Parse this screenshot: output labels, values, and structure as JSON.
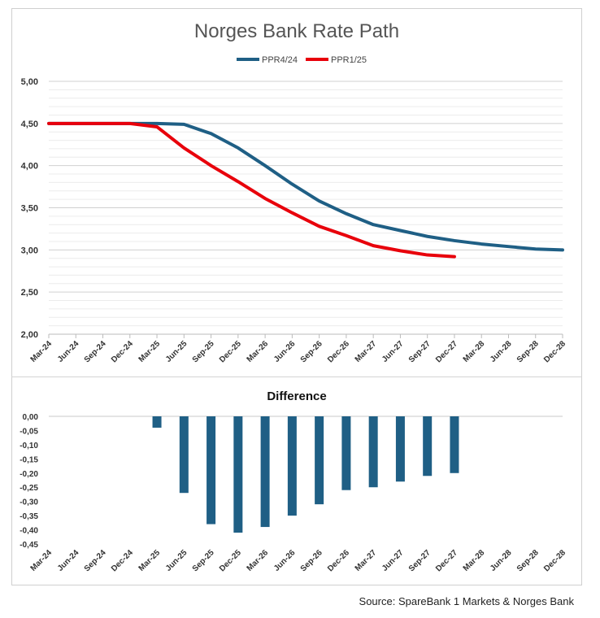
{
  "source": "Source: SpareBank 1 Markets & Norges Bank",
  "chart_data": [
    {
      "type": "line",
      "title": "Norges Bank Rate Path",
      "xlabel": "",
      "ylabel": "",
      "categories": [
        "Mar-24",
        "Jun-24",
        "Sep-24",
        "Dec-24",
        "Mar-25",
        "Jun-25",
        "Sep-25",
        "Dec-25",
        "Mar-26",
        "Jun-26",
        "Sep-26",
        "Dec-26",
        "Mar-27",
        "Jun-27",
        "Sep-27",
        "Dec-27",
        "Mar-28",
        "Jun-28",
        "Sep-28",
        "Dec-28"
      ],
      "ylim": [
        2.0,
        5.0
      ],
      "yticks": [
        "2,00",
        "2,50",
        "3,00",
        "3,50",
        "4,00",
        "4,50",
        "5,00"
      ],
      "grid": true,
      "legend": "top-center",
      "series": [
        {
          "name": "PPR4/24",
          "color": "#1f5f85",
          "values": [
            4.5,
            4.5,
            4.5,
            4.5,
            4.5,
            4.49,
            4.38,
            4.21,
            4.0,
            3.78,
            3.58,
            3.43,
            3.3,
            3.23,
            3.16,
            3.11,
            3.07,
            3.04,
            3.01,
            3.0
          ]
        },
        {
          "name": "PPR1/25",
          "color": "#e8000b",
          "values": [
            4.5,
            4.5,
            4.5,
            4.5,
            4.46,
            4.21,
            4.0,
            3.81,
            3.61,
            3.44,
            3.28,
            3.17,
            3.05,
            2.99,
            2.94,
            2.92,
            null,
            null,
            null,
            null
          ]
        }
      ]
    },
    {
      "type": "bar",
      "title": "Difference",
      "xlabel": "",
      "ylabel": "",
      "categories": [
        "Mar-24",
        "Jun-24",
        "Sep-24",
        "Dec-24",
        "Mar-25",
        "Jun-25",
        "Sep-25",
        "Dec-25",
        "Mar-26",
        "Jun-26",
        "Sep-26",
        "Dec-26",
        "Mar-27",
        "Jun-27",
        "Sep-27",
        "Dec-27",
        "Mar-28",
        "Jun-28",
        "Sep-28",
        "Dec-28"
      ],
      "ylim": [
        -0.45,
        0.0
      ],
      "yticks": [
        "0,00",
        "-0,05",
        "-0,10",
        "-0,15",
        "-0,20",
        "-0,25",
        "-0,30",
        "-0,35",
        "-0,40",
        "-0,45"
      ],
      "grid": false,
      "color": "#1f5f85",
      "values": [
        null,
        null,
        null,
        null,
        -0.04,
        -0.27,
        -0.38,
        -0.41,
        -0.39,
        -0.35,
        -0.31,
        -0.26,
        -0.25,
        -0.23,
        -0.21,
        -0.2,
        null,
        null,
        null,
        null
      ]
    }
  ]
}
